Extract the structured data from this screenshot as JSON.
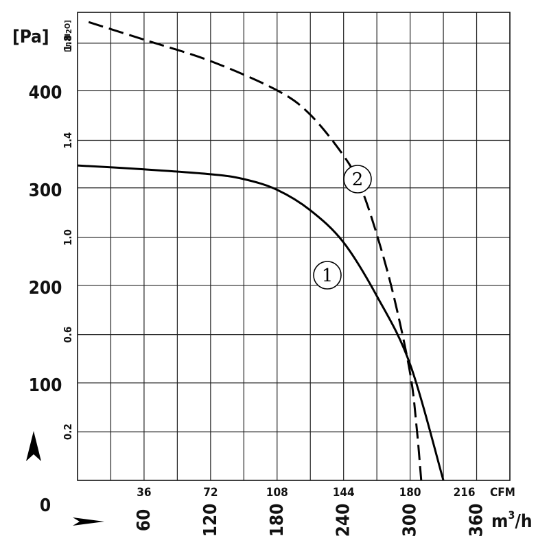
{
  "chart_data": {
    "type": "line",
    "xlabel_primary": "m3/h",
    "xlabel_secondary": "CFM",
    "ylabel_primary": "[Pa]",
    "ylabel_secondary": "[in.H2O]",
    "xlim_m3h": [
      0,
      390
    ],
    "ylim_pa": [
      0,
      480
    ],
    "x_ticks_m3h": [
      "60",
      "120",
      "180",
      "240",
      "300",
      "360"
    ],
    "x_ticks_cfm": [
      "36",
      "72",
      "108",
      "144",
      "180",
      "216"
    ],
    "y_ticks_pa": [
      "0",
      "100",
      "200",
      "300",
      "400"
    ],
    "y_ticks_inh2o": [
      "0.2",
      "0.6",
      "1.0",
      "1.4",
      "1.8"
    ],
    "series": [
      {
        "name": "1",
        "style": "solid",
        "points": [
          [
            0,
            323
          ],
          [
            60,
            319
          ],
          [
            120,
            314
          ],
          [
            150,
            309
          ],
          [
            180,
            298
          ],
          [
            210,
            277
          ],
          [
            240,
            244
          ],
          [
            270,
            189
          ],
          [
            300,
            119
          ],
          [
            330,
            0
          ]
        ]
      },
      {
        "name": "2",
        "style": "dashed",
        "points": [
          [
            10,
            470
          ],
          [
            60,
            452
          ],
          [
            120,
            430
          ],
          [
            180,
            400
          ],
          [
            210,
            375
          ],
          [
            240,
            333
          ],
          [
            255,
            302
          ],
          [
            270,
            252
          ],
          [
            285,
            190
          ],
          [
            300,
            110
          ],
          [
            306,
            53
          ],
          [
            310,
            0
          ]
        ]
      }
    ]
  },
  "labels": {
    "y_unit_pa": "[Pa]",
    "y_unit_in": "[in.H",
    "y_unit_in_sub": "2",
    "y_unit_in_end": "O]",
    "x_unit_cfm": "CFM",
    "x_unit_m3h_base": "m",
    "x_unit_m3h_sup": "3",
    "x_unit_m3h_end": "/h",
    "curve1_marker": "1",
    "curve2_marker": "2"
  }
}
